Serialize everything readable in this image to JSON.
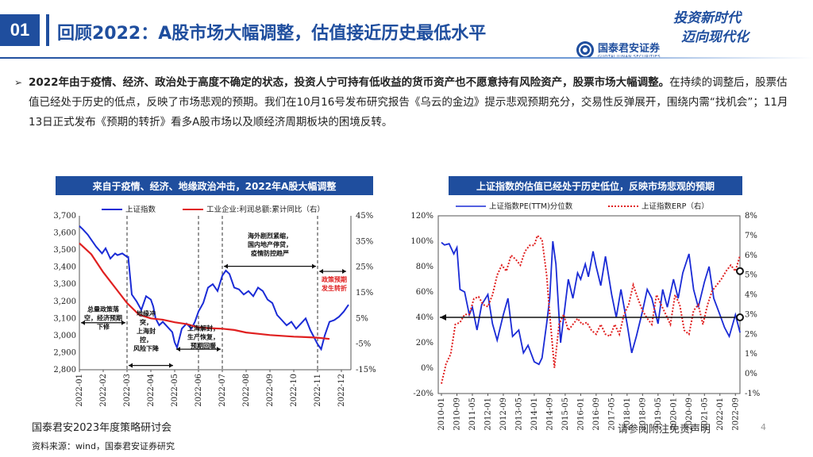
{
  "header": {
    "slide_number": "01",
    "title": "回顾2022：A股市场大幅调整，估值接近历史最低水平",
    "slogan_line1": "投资新时代",
    "slogan_line2": "迈向现代化",
    "logo_cn": "国泰君安证券",
    "logo_en": "GUOTAI JUNAN SECURITIES"
  },
  "bullet": {
    "marker": "➢",
    "bold_text": "2022年由于疫情、经济、政治处于高度不确定的状态，投资人宁可持有低收益的货币资产也不愿意持有风险资产，股票市场大幅调整。",
    "text": "在持续的调整后，股票估值已经处于历史的低点，反映了市场悲观的预期。我们在10月16号发布研究报告《乌云的金边》提示悲观预期充分，交易性反弹展开，围绕内需“找机会”；11月13日正式发布《预期的转折》看多A股市场以及顺经济周期板块的困境反转。"
  },
  "chart_data": [
    {
      "type": "line",
      "title": "来自于疫情、经济、地缘政治冲击，2022年A股大幅调整",
      "categories": [
        "2022-01",
        "2022-02",
        "2022-03",
        "2022-04",
        "2022-05",
        "2022-06",
        "2022-07",
        "2022-08",
        "2022-09",
        "2022-10",
        "2022-11",
        "2022-12"
      ],
      "series": [
        {
          "name": "上证指数",
          "axis": "left",
          "color": "#1a2bd6",
          "x": [
            0,
            0.15,
            0.35,
            0.5,
            0.7,
            0.95,
            1.1,
            1.3,
            1.5,
            1.6,
            1.8,
            2.0,
            2.05,
            2.2,
            2.4,
            2.6,
            2.8,
            3.0,
            3.1,
            3.2,
            3.35,
            3.5,
            3.7,
            3.9,
            4.0,
            4.1,
            4.3,
            4.5,
            4.7,
            4.85,
            5.0,
            5.2,
            5.4,
            5.6,
            5.8,
            6.0,
            6.15,
            6.3,
            6.5,
            6.7,
            6.9,
            7.1,
            7.3,
            7.5,
            7.7,
            7.9,
            8.1,
            8.3,
            8.5,
            8.7,
            8.9,
            9.1,
            9.3,
            9.5,
            9.7,
            9.85,
            10.0,
            10.15,
            10.3,
            10.5,
            10.7,
            10.9,
            11.1,
            11.3
          ],
          "values": [
            3640,
            3620,
            3590,
            3560,
            3520,
            3480,
            3510,
            3450,
            3480,
            3470,
            3480,
            3460,
            3460,
            3240,
            3200,
            3150,
            3230,
            3210,
            3170,
            3100,
            3060,
            3080,
            3050,
            3020,
            2960,
            2930,
            3040,
            3070,
            3040,
            3080,
            3140,
            3190,
            3280,
            3300,
            3260,
            3350,
            3380,
            3360,
            3280,
            3270,
            3240,
            3260,
            3230,
            3280,
            3260,
            3210,
            3190,
            3120,
            3090,
            3060,
            3080,
            3040,
            3070,
            3100,
            3030,
            2990,
            2950,
            2920,
            3000,
            3080,
            3090,
            3110,
            3140,
            3180
          ]
        },
        {
          "name": "工业企业:利润总额:累计同比（右）",
          "axis": "right",
          "color": "#e02020",
          "x": [
            0,
            0.5,
            1.0,
            1.5,
            2.0,
            2.5,
            3.0,
            3.5,
            4.0,
            4.5,
            5.0,
            5.5,
            6.0,
            6.5,
            7.0,
            7.5,
            8.0,
            8.5,
            9.0,
            9.5,
            10.0,
            10.5
          ],
          "values": [
            34.3,
            30,
            23,
            17,
            11,
            6.5,
            5,
            4.5,
            3.5,
            2.8,
            1.5,
            1.2,
            1,
            0.5,
            -0.5,
            -1,
            -1.5,
            -1.8,
            -2.1,
            -2.3,
            -2.5,
            -3
          ]
        }
      ],
      "y_left": {
        "min": 2800,
        "max": 3700,
        "ticks": [
          "2,800",
          "2,900",
          "3,000",
          "3,100",
          "3,200",
          "3,300",
          "3,400",
          "3,500",
          "3,600",
          "3,700"
        ]
      },
      "y_right": {
        "min": -15,
        "max": 45,
        "ticks": [
          "-15%",
          "-5%",
          "5%",
          "15%",
          "25%",
          "35%",
          "45%"
        ]
      },
      "annotations": [
        {
          "text": "总量政策落空，经济预期下修",
          "color": "black"
        },
        {
          "text": "地缘冲突，上海封控，风险下降",
          "color": "black"
        },
        {
          "text": "上海解封，生产恢复，预期回暖",
          "color": "black"
        },
        {
          "text": "海外剧烈紧缩，国内地产停贷，疫情防控趋严",
          "color": "black"
        },
        {
          "text": "政策预期发生转折",
          "color": "red"
        }
      ]
    },
    {
      "type": "line",
      "title": "上证指数的估值已经处于历史低位，反映市场悲观的预期",
      "categories": [
        "2010-01",
        "2010-09",
        "2011-05",
        "2012-01",
        "2012-09",
        "2013-05",
        "2014-01",
        "2014-09",
        "2015-05",
        "2016-01",
        "2016-09",
        "2017-05",
        "2018-01",
        "2018-09",
        "2019-05",
        "2020-01",
        "2020-09",
        "2021-05",
        "2022-01",
        "2022-09"
      ],
      "series": [
        {
          "name": "上证指数PE(TTM)分位数",
          "axis": "left",
          "color": "#1a2bd6",
          "x": [
            0,
            0.2,
            0.5,
            0.8,
            1.0,
            1.2,
            1.5,
            1.8,
            2.0,
            2.3,
            2.6,
            3.0,
            3.3,
            3.6,
            4.0,
            4.3,
            4.6,
            5.0,
            5.3,
            5.6,
            6.0,
            6.3,
            6.5,
            6.8,
            7.0,
            7.2,
            7.4,
            7.7,
            8.0,
            8.2,
            8.5,
            8.8,
            9.0,
            9.3,
            9.5,
            9.8,
            10.0,
            10.3,
            10.6,
            11.0,
            11.3,
            11.6,
            12.0,
            12.3,
            12.6,
            13.0,
            13.3,
            13.6,
            14.0,
            14.3,
            14.6,
            15.0,
            15.3,
            15.6,
            16.0,
            16.3,
            16.6,
            17.0,
            17.3,
            17.6,
            18.0,
            18.3,
            18.6,
            19.0,
            19.3
          ],
          "values": [
            99,
            97,
            98,
            90,
            95,
            62,
            60,
            42,
            48,
            30,
            50,
            58,
            35,
            22,
            42,
            55,
            25,
            30,
            12,
            18,
            5,
            3,
            8,
            35,
            55,
            100,
            82,
            20,
            50,
            70,
            55,
            75,
            70,
            82,
            72,
            92,
            80,
            65,
            88,
            58,
            40,
            62,
            35,
            12,
            25,
            45,
            62,
            55,
            35,
            62,
            48,
            70,
            55,
            75,
            90,
            62,
            48,
            68,
            80,
            55,
            42,
            32,
            25,
            42,
            28
          ]
        },
        {
          "name": "上证指数ERP（右）",
          "axis": "right",
          "color": "#e02020",
          "dashed": true,
          "x": [
            0,
            0.3,
            0.6,
            0.9,
            1.2,
            1.5,
            1.8,
            2.1,
            2.4,
            2.7,
            3.0,
            3.3,
            3.6,
            3.9,
            4.2,
            4.5,
            4.8,
            5.1,
            5.4,
            5.7,
            6.0,
            6.2,
            6.5,
            6.8,
            7.0,
            7.3,
            7.6,
            7.9,
            8.2,
            8.5,
            8.8,
            9.1,
            9.4,
            9.7,
            10.0,
            10.3,
            10.6,
            10.9,
            11.2,
            11.5,
            11.8,
            12.1,
            12.4,
            12.7,
            13.0,
            13.3,
            13.6,
            13.9,
            14.2,
            14.5,
            14.8,
            15.1,
            15.4,
            15.7,
            16.0,
            16.3,
            16.6,
            16.9,
            17.2,
            17.5,
            17.8,
            18.1,
            18.4,
            18.7,
            19.0,
            19.3
          ],
          "values": [
            -0.5,
            0.5,
            1,
            2.5,
            2.6,
            3,
            3,
            3.8,
            3.9,
            3.5,
            3.4,
            4,
            5,
            5.5,
            5.2,
            6,
            5.8,
            5.5,
            6.2,
            6.5,
            6.5,
            7,
            6.8,
            5,
            3,
            0.3,
            2.5,
            3,
            2.2,
            2.5,
            2.8,
            2.5,
            2.6,
            2.2,
            2,
            2.5,
            2,
            1.9,
            2.5,
            2,
            3,
            3.5,
            4.5,
            3.8,
            3.2,
            2.8,
            2.5,
            4,
            3.5,
            3,
            2.5,
            4,
            3.5,
            2.2,
            2,
            3.2,
            3.5,
            2.5,
            3.5,
            4.2,
            4.5,
            4.8,
            5.2,
            5.5,
            5.2,
            6
          ]
        }
      ],
      "y_left": {
        "min": -20,
        "max": 120,
        "ticks": [
          "-20%",
          "0%",
          "20%",
          "40%",
          "60%",
          "80%",
          "100%",
          "120%"
        ]
      },
      "y_right": {
        "min": -1,
        "max": 8,
        "ticks": [
          "-1%",
          "0%",
          "1%",
          "2%",
          "3%",
          "4%",
          "5%",
          "6%",
          "7%",
          "8%"
        ]
      },
      "reference_line_left_value": 40
    }
  ],
  "footer": {
    "event": "国泰君安2023年度策略研讨会",
    "source": "资料来源：wind，国泰君安证券研究",
    "disclaimer": "请参阅附注免责声明",
    "page": "4"
  }
}
